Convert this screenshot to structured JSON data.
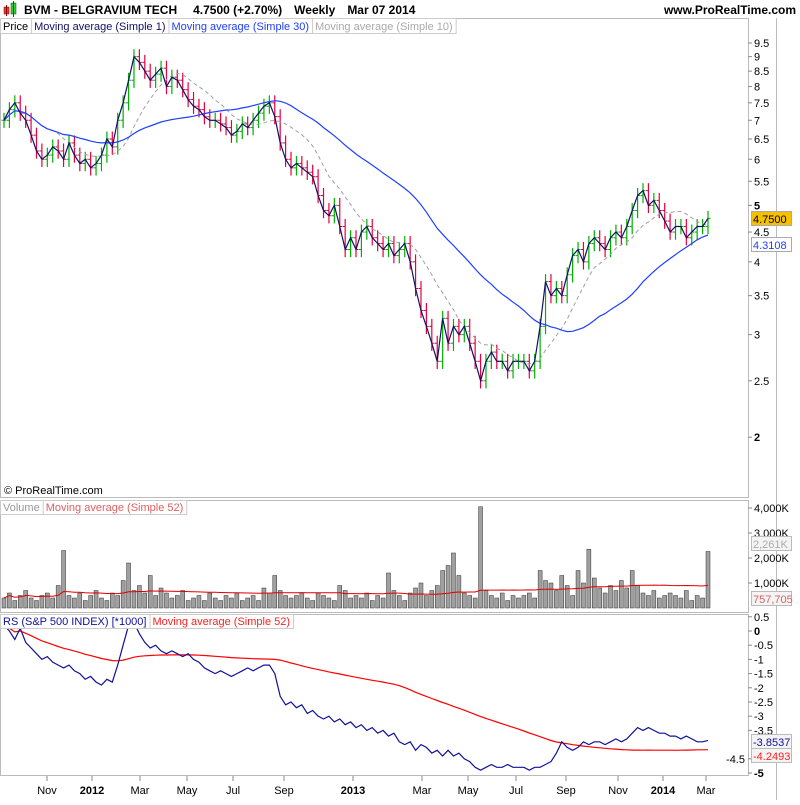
{
  "header": {
    "symbol": "BVM - BELGRAVIUM TECH",
    "price": "4.7500 (+2.70%)",
    "period": "Weekly",
    "date": "Mar 07 2014",
    "site": "www.ProRealTime.com",
    "copyright": "© ProRealTime.com"
  },
  "legends": {
    "price": [
      "Price",
      "Moving average (Simple 1)",
      "Moving average (Simple 30)",
      "Moving average (Simple 10)"
    ],
    "volume": [
      "Volume",
      "Moving average (Simple 52)"
    ],
    "rs": [
      "RS (S&P 500 INDEX) [*1000]",
      "Moving average (Simple 52)"
    ]
  },
  "colors": {
    "up": "#00b000",
    "down": "#e8003c",
    "ma1": "#10106a",
    "ma30": "#2040ff",
    "ma10": "#a0a0a0",
    "volume_bar": "#a0a0a0",
    "volume_ma": "#e00000",
    "rs": "#10109a",
    "rs_ma": "#ff0000",
    "last_price_bg": "#f5c000"
  },
  "chart_data": [
    {
      "type": "bar",
      "panel": "price",
      "scale": "log",
      "ylim": [
        1.7,
        10
      ],
      "y_ticks": [
        "9.5",
        "9",
        "8.5",
        "8",
        "7.5",
        "7",
        "6.5",
        "6",
        "5.5",
        "5",
        "4.5",
        "4",
        "3.5",
        "3",
        "2.5",
        "2"
      ],
      "x_ticks": [
        "Nov",
        "2012",
        "Mar",
        "May",
        "Jul",
        "Sep",
        "2013",
        "Mar",
        "May",
        "Jul",
        "Sep",
        "Nov",
        "2014",
        "Mar"
      ],
      "series_name": "Price",
      "last_value_label": "4.7500",
      "ma30_value_label": "4.3108",
      "close": [
        7.0,
        7.3,
        7.5,
        7.2,
        7.0,
        6.6,
        6.2,
        6.0,
        6.1,
        6.3,
        6.2,
        6.0,
        6.4,
        6.1,
        5.9,
        6.0,
        5.8,
        5.9,
        6.1,
        6.5,
        6.3,
        7.0,
        7.5,
        8.2,
        9.0,
        8.8,
        8.5,
        8.2,
        8.4,
        8.6,
        8.0,
        8.3,
        8.2,
        7.9,
        7.6,
        7.4,
        7.3,
        7.1,
        7.0,
        7.0,
        6.9,
        6.8,
        6.6,
        6.7,
        6.9,
        6.8,
        7.0,
        7.2,
        7.4,
        7.5,
        7.1,
        6.4,
        6.0,
        5.8,
        5.9,
        5.8,
        5.7,
        5.6,
        5.2,
        4.9,
        4.8,
        5.0,
        4.6,
        4.2,
        4.4,
        4.2,
        4.5,
        4.6,
        4.4,
        4.3,
        4.2,
        4.3,
        4.1,
        4.2,
        4.3,
        4.0,
        3.6,
        3.3,
        3.1,
        2.9,
        2.7,
        3.2,
        2.9,
        3.1,
        3.0,
        3.1,
        2.9,
        2.7,
        2.5,
        2.7,
        2.8,
        2.7,
        2.7,
        2.6,
        2.7,
        2.7,
        2.7,
        2.6,
        2.7,
        3.1,
        3.7,
        3.5,
        3.6,
        3.5,
        3.8,
        4.1,
        4.2,
        4.0,
        4.3,
        4.4,
        4.3,
        4.2,
        4.4,
        4.5,
        4.4,
        4.6,
        4.9,
        5.2,
        5.3,
        5.0,
        5.1,
        4.9,
        4.7,
        4.5,
        4.6,
        4.6,
        4.4,
        4.5,
        4.6,
        4.6,
        4.75
      ]
    },
    {
      "type": "bar",
      "panel": "volume",
      "unit": "K",
      "ylim": [
        0,
        4200
      ],
      "y_ticks": [
        "4,000K",
        "3,000K",
        "2,000K",
        "1,000K"
      ],
      "last_value_label": "2,261K",
      "ma_value_label": "757,705",
      "values": [
        400,
        600,
        300,
        500,
        700,
        400,
        300,
        500,
        600,
        400,
        900,
        2300,
        500,
        400,
        600,
        300,
        500,
        700,
        400,
        300,
        600,
        500,
        1100,
        1800,
        700,
        900,
        600,
        1300,
        500,
        800,
        600,
        400,
        500,
        700,
        300,
        400,
        500,
        300,
        600,
        400,
        300,
        500,
        400,
        600,
        300,
        400,
        500,
        300,
        800,
        600,
        1300,
        700,
        500,
        400,
        500,
        600,
        400,
        300,
        600,
        500,
        400,
        300,
        900,
        700,
        400,
        500,
        400,
        600,
        300,
        500,
        400,
        1400,
        700,
        500,
        300,
        600,
        800,
        1000,
        500,
        700,
        900,
        1500,
        1700,
        2200,
        1300,
        600,
        500,
        400,
        4050,
        700,
        500,
        400,
        600,
        300,
        500,
        400,
        500,
        600,
        400,
        1500,
        1100,
        1000,
        700,
        1300,
        900,
        500,
        1500,
        1000,
        2350,
        1200,
        800,
        600,
        900,
        700,
        1100,
        800,
        1500,
        900,
        600,
        500,
        700,
        400,
        500,
        600,
        500,
        400,
        700,
        300,
        500,
        400,
        2261
      ]
    },
    {
      "type": "line",
      "panel": "rs",
      "ylim": [
        -5.25,
        0.75
      ],
      "y_ticks": [
        "0.5",
        "0",
        "-0.5",
        "-1",
        "-1.5",
        "-2",
        "-2.5",
        "-3",
        "-3.5",
        "-4.5",
        "-5"
      ],
      "last_value_label": "-3.8537",
      "ma_value_label": "-4.2493",
      "values": [
        0.2,
        0.0,
        -0.3,
        0.1,
        -0.4,
        -0.6,
        -0.8,
        -1.0,
        -0.9,
        -1.1,
        -1.2,
        -1.3,
        -1.2,
        -1.4,
        -1.5,
        -1.7,
        -1.6,
        -1.8,
        -1.9,
        -1.7,
        -1.8,
        -1.2,
        -0.5,
        0.2,
        0.3,
        -0.1,
        -0.4,
        -0.6,
        -0.5,
        -0.7,
        -0.8,
        -0.7,
        -0.8,
        -0.9,
        -0.8,
        -1.0,
        -1.1,
        -1.3,
        -1.4,
        -1.5,
        -1.4,
        -1.5,
        -1.6,
        -1.5,
        -1.4,
        -1.3,
        -1.4,
        -1.3,
        -1.2,
        -1.2,
        -1.5,
        -2.3,
        -2.6,
        -2.5,
        -2.7,
        -2.6,
        -2.9,
        -2.8,
        -3.0,
        -3.1,
        -3.0,
        -3.2,
        -3.1,
        -3.3,
        -3.2,
        -3.4,
        -3.3,
        -3.5,
        -3.4,
        -3.6,
        -3.5,
        -3.7,
        -3.6,
        -3.9,
        -4.0,
        -3.9,
        -4.2,
        -4.0,
        -4.1,
        -4.3,
        -4.2,
        -4.4,
        -4.2,
        -4.4,
        -4.3,
        -4.5,
        -4.6,
        -4.8,
        -4.9,
        -4.8,
        -4.7,
        -4.8,
        -4.8,
        -4.7,
        -4.8,
        -4.8,
        -4.8,
        -4.9,
        -4.8,
        -4.8,
        -4.7,
        -4.6,
        -4.3,
        -3.9,
        -4.1,
        -4.2,
        -4.1,
        -3.9,
        -4.0,
        -3.9,
        -3.9,
        -4.0,
        -3.9,
        -3.8,
        -3.9,
        -3.8,
        -3.6,
        -3.4,
        -3.5,
        -3.4,
        -3.5,
        -3.6,
        -3.6,
        -3.7,
        -3.7,
        -3.8,
        -3.7,
        -3.8,
        -3.9,
        -3.9,
        -3.8537
      ]
    }
  ]
}
